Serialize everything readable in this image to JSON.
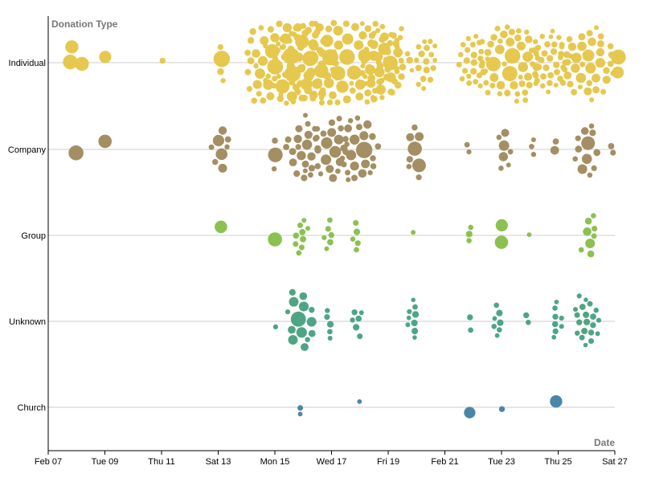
{
  "chart_data": {
    "type": "scatter",
    "subtype": "beeswarm",
    "xlabel": "Date",
    "ylabel": "Donation Type",
    "x_ticks": [
      "Feb 07",
      "Tue 09",
      "Thu 11",
      "Sat 13",
      "Mon 15",
      "Wed 17",
      "Fri 19",
      "Feb 21",
      "Tue 23",
      "Thu 25",
      "Sat 27"
    ],
    "xlim": [
      "2021-02-07",
      "2021-02-27"
    ],
    "grid": "horizontal",
    "categories": [
      {
        "name": "Individual",
        "color": "#e6c84f"
      },
      {
        "name": "Company",
        "color": "#a38f63"
      },
      {
        "name": "Group",
        "color": "#8cc152"
      },
      {
        "name": "Unknown",
        "color": "#4ea585"
      },
      {
        "name": "Church",
        "color": "#4a86a8"
      }
    ],
    "clusters": [
      {
        "category": "Individual",
        "day": 7.8,
        "count": 2,
        "size": "large"
      },
      {
        "category": "Individual",
        "day": 8.2,
        "count": 1,
        "size": "large"
      },
      {
        "category": "Individual",
        "day": 9.0,
        "count": 1,
        "size": "large"
      },
      {
        "category": "Individual",
        "day": 11.0,
        "count": 1,
        "size": "small"
      },
      {
        "category": "Individual",
        "day": 13.1,
        "count": 4,
        "size": "mixed"
      },
      {
        "category": "Individual",
        "day": 15.5,
        "count": 60,
        "size": "mixed"
      },
      {
        "category": "Individual",
        "day": 17.2,
        "count": 110,
        "size": "mixed"
      },
      {
        "category": "Individual",
        "day": 18.9,
        "count": 30,
        "size": "mixed"
      },
      {
        "category": "Individual",
        "day": 20.3,
        "count": 18,
        "size": "small"
      },
      {
        "category": "Individual",
        "day": 22.0,
        "count": 25,
        "size": "small"
      },
      {
        "category": "Individual",
        "day": 23.3,
        "count": 45,
        "size": "mixed"
      },
      {
        "category": "Individual",
        "day": 24.7,
        "count": 35,
        "size": "small"
      },
      {
        "category": "Individual",
        "day": 26.0,
        "count": 40,
        "size": "mixed"
      },
      {
        "category": "Individual",
        "day": 27.1,
        "count": 2,
        "size": "large"
      },
      {
        "category": "Company",
        "day": 8.0,
        "count": 1,
        "size": "large"
      },
      {
        "category": "Company",
        "day": 9.0,
        "count": 1,
        "size": "large"
      },
      {
        "category": "Company",
        "day": 13.1,
        "count": 8,
        "size": "mixed"
      },
      {
        "category": "Company",
        "day": 15.0,
        "count": 3,
        "size": "mixed"
      },
      {
        "category": "Company",
        "day": 16.0,
        "count": 22,
        "size": "mixed"
      },
      {
        "category": "Company",
        "day": 17.0,
        "count": 20,
        "size": "mixed"
      },
      {
        "category": "Company",
        "day": 18.0,
        "count": 24,
        "size": "mixed"
      },
      {
        "category": "Company",
        "day": 20.0,
        "count": 8,
        "size": "mixed"
      },
      {
        "category": "Company",
        "day": 21.8,
        "count": 2,
        "size": "mixed"
      },
      {
        "category": "Company",
        "day": 23.1,
        "count": 7,
        "size": "mixed"
      },
      {
        "category": "Company",
        "day": 24.1,
        "count": 3,
        "size": "small"
      },
      {
        "category": "Company",
        "day": 24.9,
        "count": 2,
        "size": "mixed"
      },
      {
        "category": "Company",
        "day": 26.0,
        "count": 12,
        "size": "mixed"
      },
      {
        "category": "Company",
        "day": 26.9,
        "count": 2,
        "size": "small"
      },
      {
        "category": "Group",
        "day": 13.1,
        "count": 1,
        "size": "large"
      },
      {
        "category": "Group",
        "day": 15.0,
        "count": 1,
        "size": "large"
      },
      {
        "category": "Group",
        "day": 15.9,
        "count": 9,
        "size": "small"
      },
      {
        "category": "Group",
        "day": 16.9,
        "count": 6,
        "size": "small"
      },
      {
        "category": "Group",
        "day": 17.9,
        "count": 5,
        "size": "small"
      },
      {
        "category": "Group",
        "day": 19.9,
        "count": 1,
        "size": "small"
      },
      {
        "category": "Group",
        "day": 21.9,
        "count": 3,
        "size": "mixed"
      },
      {
        "category": "Group",
        "day": 23.0,
        "count": 2,
        "size": "large"
      },
      {
        "category": "Group",
        "day": 24.0,
        "count": 1,
        "size": "small"
      },
      {
        "category": "Group",
        "day": 26.1,
        "count": 8,
        "size": "mixed"
      },
      {
        "category": "Unknown",
        "day": 15.0,
        "count": 1,
        "size": "small"
      },
      {
        "category": "Unknown",
        "day": 15.9,
        "count": 14,
        "size": "mixed"
      },
      {
        "category": "Unknown",
        "day": 16.9,
        "count": 5,
        "size": "small"
      },
      {
        "category": "Unknown",
        "day": 17.9,
        "count": 6,
        "size": "small"
      },
      {
        "category": "Unknown",
        "day": 19.9,
        "count": 9,
        "size": "small"
      },
      {
        "category": "Unknown",
        "day": 21.9,
        "count": 2,
        "size": "small"
      },
      {
        "category": "Unknown",
        "day": 22.9,
        "count": 7,
        "size": "small"
      },
      {
        "category": "Unknown",
        "day": 23.9,
        "count": 2,
        "size": "small"
      },
      {
        "category": "Unknown",
        "day": 24.9,
        "count": 8,
        "size": "small"
      },
      {
        "category": "Unknown",
        "day": 26.0,
        "count": 20,
        "size": "small"
      },
      {
        "category": "Church",
        "day": 15.9,
        "count": 2,
        "size": "small"
      },
      {
        "category": "Church",
        "day": 18.0,
        "count": 1,
        "size": "small"
      },
      {
        "category": "Church",
        "day": 21.9,
        "count": 1,
        "size": "large"
      },
      {
        "category": "Church",
        "day": 23.0,
        "count": 1,
        "size": "small"
      },
      {
        "category": "Church",
        "day": 24.9,
        "count": 1,
        "size": "large"
      }
    ]
  }
}
